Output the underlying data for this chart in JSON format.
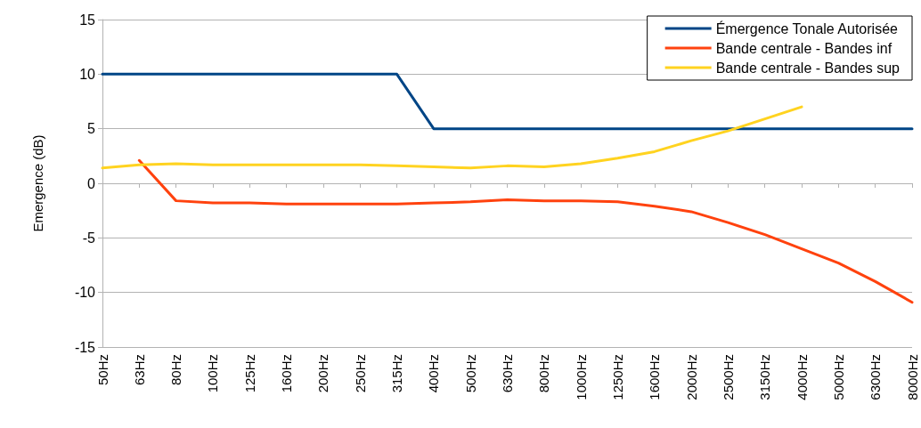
{
  "chart_data": {
    "type": "line",
    "ylabel": "Emergence (dB)",
    "categories": [
      "50Hz",
      "63Hz",
      "80Hz",
      "100Hz",
      "125Hz",
      "160Hz",
      "200Hz",
      "250Hz",
      "315Hz",
      "400Hz",
      "500Hz",
      "630Hz",
      "800Hz",
      "1000Hz",
      "1250Hz",
      "1600Hz",
      "2000Hz",
      "2500Hz",
      "3150Hz",
      "4000Hz",
      "5000Hz",
      "6300Hz",
      "8000Hz"
    ],
    "series": [
      {
        "name": "Émergence Tonale Autorisée",
        "color": "#004586",
        "values": [
          10,
          10,
          10,
          10,
          10,
          10,
          10,
          10,
          10,
          5,
          5,
          5,
          5,
          5,
          5,
          5,
          5,
          5,
          5,
          5,
          5,
          5,
          5
        ]
      },
      {
        "name": "Bande centrale - Bandes inf",
        "color": "#ff420e",
        "values": [
          null,
          2.1,
          -1.6,
          -1.8,
          -1.8,
          -1.9,
          -1.9,
          -1.9,
          -1.9,
          -1.8,
          -1.7,
          -1.5,
          -1.6,
          -1.6,
          -1.7,
          -2.1,
          -2.6,
          -3.6,
          -4.7,
          -6.0,
          -7.3,
          -9.0,
          -10.9
        ]
      },
      {
        "name": "Bande centrale - Bandes sup",
        "color": "#ffd320",
        "values": [
          1.4,
          1.7,
          1.8,
          1.7,
          1.7,
          1.7,
          1.7,
          1.7,
          1.6,
          1.5,
          1.4,
          1.6,
          1.5,
          1.8,
          2.3,
          2.9,
          3.9,
          4.8,
          5.9,
          7.0,
          null,
          null,
          null
        ]
      }
    ],
    "ylim": [
      -15,
      15
    ],
    "yticks": [
      -15,
      -10,
      -5,
      0,
      5,
      10,
      15
    ],
    "grid": "y",
    "legend": "top right",
    "marker": "none",
    "line_style": "solid"
  }
}
